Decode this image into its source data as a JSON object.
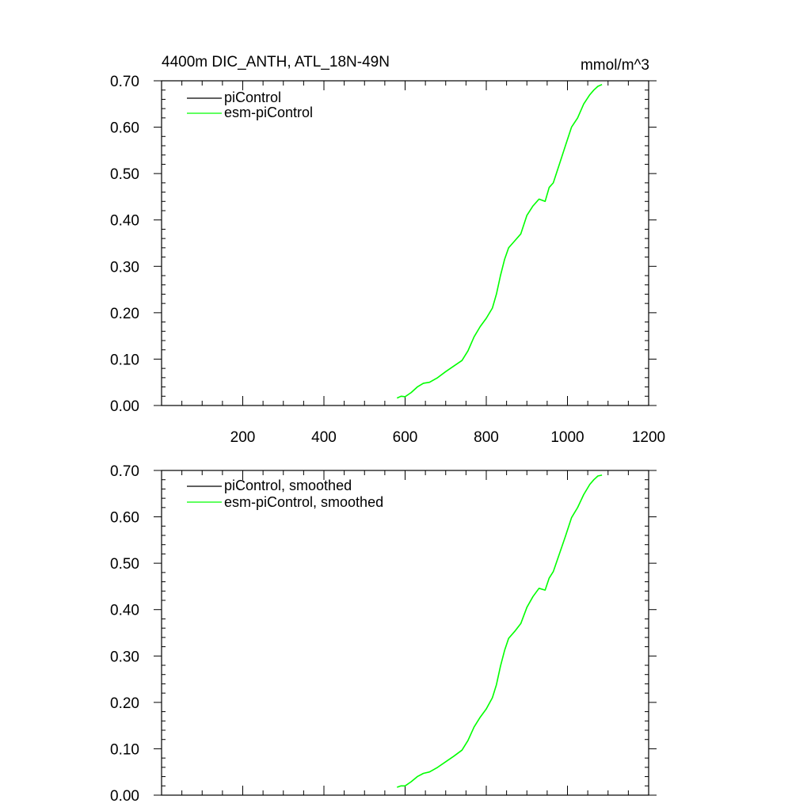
{
  "chart_data": [
    {
      "type": "line",
      "title": "4400m DIC_ANTH, ATL_18N-49N",
      "units": "mmol/m^3",
      "xlim": [
        0,
        1200
      ],
      "ylim": [
        0,
        0.7
      ],
      "xticks": [
        "200",
        "400",
        "600",
        "800",
        "1000",
        "1200"
      ],
      "yticks": [
        "0.00",
        "0.10",
        "0.20",
        "0.30",
        "0.40",
        "0.50",
        "0.60",
        "0.70"
      ],
      "legend_position": "top-left",
      "series": [
        {
          "name": "piControl",
          "color": "#000000",
          "x": [],
          "y": []
        },
        {
          "name": "esm-piControl",
          "color": "#00ff00",
          "x": [
            580,
            590,
            600,
            615,
            630,
            645,
            660,
            680,
            700,
            720,
            740,
            755,
            770,
            785,
            800,
            815,
            825,
            835,
            845,
            855,
            870,
            885,
            900,
            915,
            930,
            945,
            955,
            965,
            980,
            995,
            1010,
            1025,
            1040,
            1055,
            1065,
            1075,
            1085
          ],
          "y": [
            0.016,
            0.02,
            0.019,
            0.028,
            0.04,
            0.048,
            0.05,
            0.06,
            0.073,
            0.085,
            0.097,
            0.118,
            0.148,
            0.17,
            0.188,
            0.21,
            0.24,
            0.28,
            0.315,
            0.34,
            0.355,
            0.37,
            0.41,
            0.43,
            0.445,
            0.44,
            0.47,
            0.48,
            0.52,
            0.56,
            0.6,
            0.62,
            0.65,
            0.67,
            0.68,
            0.688,
            0.692
          ]
        }
      ]
    },
    {
      "type": "line",
      "title": "",
      "xlim": [
        0,
        1200
      ],
      "ylim": [
        0,
        0.7
      ],
      "yticks": [
        "0.00",
        "0.10",
        "0.20",
        "0.30",
        "0.40",
        "0.50",
        "0.60",
        "0.70"
      ],
      "legend_position": "top-left",
      "series": [
        {
          "name": "piControl, smoothed",
          "color": "#000000",
          "x": [],
          "y": []
        },
        {
          "name": "esm-piControl, smoothed",
          "color": "#00ff00",
          "x": [
            580,
            590,
            600,
            615,
            630,
            645,
            660,
            680,
            700,
            720,
            740,
            755,
            770,
            785,
            800,
            815,
            825,
            835,
            845,
            855,
            870,
            885,
            900,
            915,
            930,
            945,
            955,
            965,
            980,
            995,
            1010,
            1025,
            1040,
            1055,
            1065,
            1075,
            1085
          ],
          "y": [
            0.017,
            0.02,
            0.02,
            0.029,
            0.04,
            0.047,
            0.05,
            0.06,
            0.072,
            0.084,
            0.097,
            0.118,
            0.147,
            0.168,
            0.186,
            0.21,
            0.238,
            0.278,
            0.312,
            0.338,
            0.353,
            0.37,
            0.405,
            0.428,
            0.446,
            0.442,
            0.468,
            0.482,
            0.52,
            0.558,
            0.598,
            0.62,
            0.648,
            0.67,
            0.68,
            0.688,
            0.69
          ]
        }
      ]
    }
  ]
}
